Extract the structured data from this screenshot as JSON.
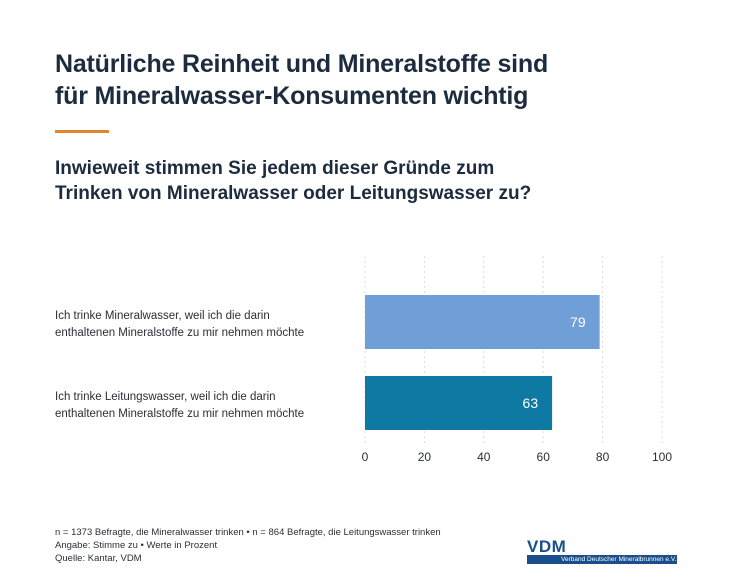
{
  "title_lines": [
    "Natürliche Reinheit und Mineralstoffe sind",
    "für Mineralwasser-Konsumenten wichtig"
  ],
  "question_lines": [
    "Inwieweit stimmen Sie jedem dieser Gründe zum",
    "Trinken von Mineralwasser oder Leitungswasser zu?"
  ],
  "colors": {
    "accent": "#e0862d",
    "bar_mineral": "#6f9fd6",
    "bar_leitung": "#0e7aa3",
    "logo": "#1a4f8c"
  },
  "chart_data": {
    "type": "bar",
    "orientation": "horizontal",
    "categories": [
      [
        "Ich trinke Mineralwasser, weil ich die darin",
        "enthaltenen Mineralstoffe zu mir nehmen möchte"
      ],
      [
        "Ich trinke Leitungswasser, weil ich die darin",
        "enthaltenen Mineralstoffe zu mir nehmen möchte"
      ]
    ],
    "values": [
      79,
      63
    ],
    "value_labels": [
      "79",
      "63"
    ],
    "xlim": [
      0,
      100
    ],
    "xticks": [
      0,
      20,
      40,
      60,
      80,
      100
    ],
    "grid": true
  },
  "footer": {
    "lines": [
      "n = 1373 Befragte, die Mineralwasser trinken • n = 864 Befragte, die Leitungswasser trinken",
      "Angabe: Stimme zu • Werte in Prozent",
      "Quelle: Kantar, VDM"
    ]
  },
  "logo": {
    "mark": "VDM",
    "subtitle": "Verband Deutscher Mineralbrunnen e.V."
  }
}
